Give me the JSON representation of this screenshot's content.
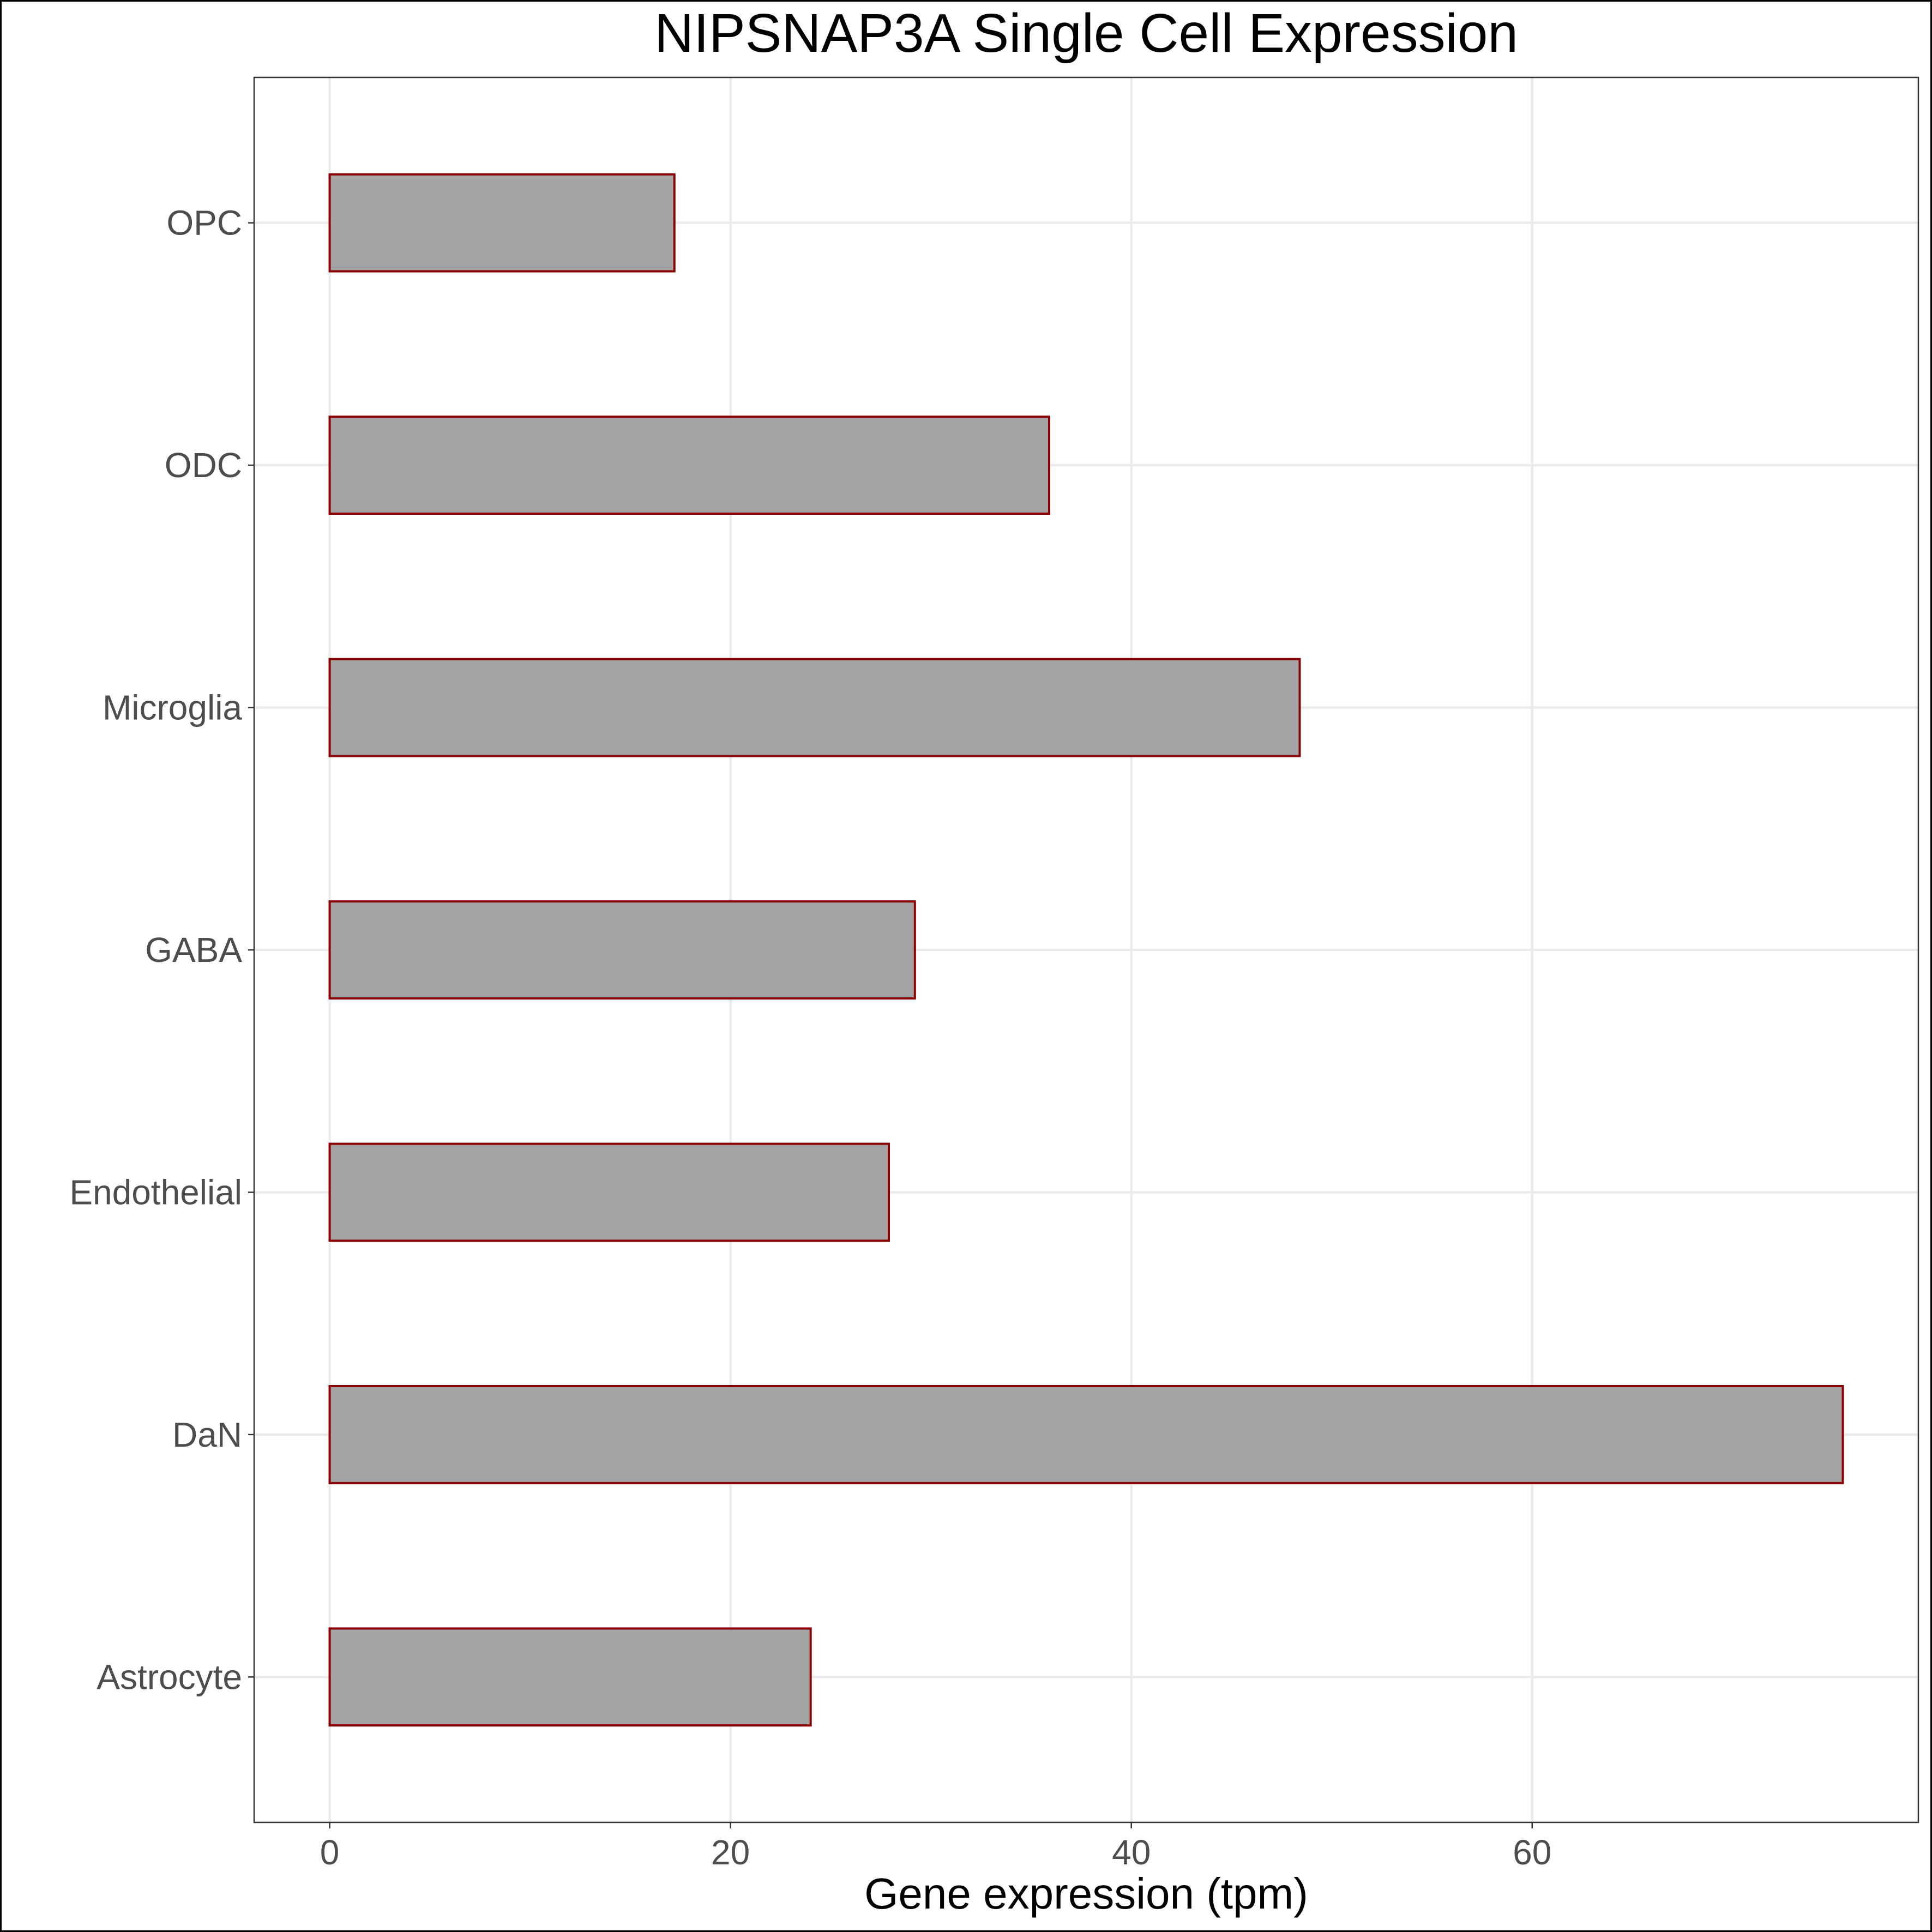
{
  "chart_data": {
    "type": "bar",
    "orientation": "horizontal",
    "title": "NIPSNAP3A Single Cell Expression",
    "xlabel": "Gene expression (tpm)",
    "ylabel": "",
    "categories": [
      "Astrocyte",
      "DaN",
      "Endothelial",
      "GABA",
      "Microglia",
      "ODC",
      "OPC"
    ],
    "values": [
      24.0,
      75.5,
      27.9,
      29.2,
      48.4,
      35.9,
      17.2
    ],
    "xlim": [
      -3.77,
      79.27
    ],
    "xticks": [
      0,
      20,
      40,
      60
    ],
    "grid": true,
    "legend": "none",
    "colors": {
      "bar_fill": "#a4a4a4",
      "bar_outline": "#8b0000",
      "grid": "#ebebeb",
      "panel_border": "#333333",
      "tick_text": "#4d4d4d"
    }
  }
}
